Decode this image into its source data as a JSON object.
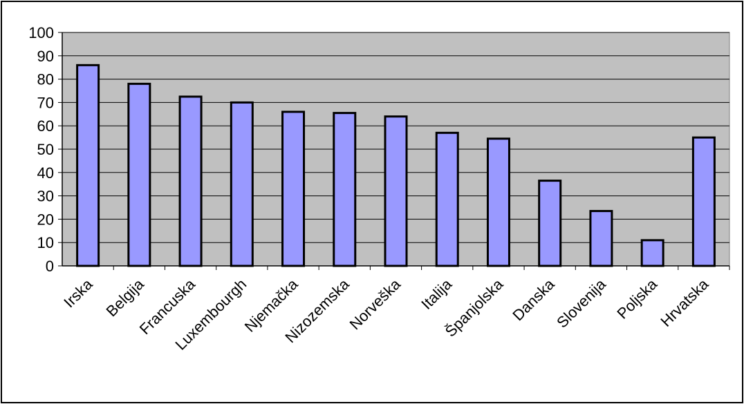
{
  "chart_data": {
    "type": "bar",
    "title": "",
    "xlabel": "",
    "ylabel": "",
    "categories": [
      "Irska",
      "Belgija",
      "Francuska",
      "Luxembourgh",
      "Njemačka",
      "Nizozemska",
      "Norveška",
      "Italija",
      "Španjolska",
      "Danska",
      "Slovenija",
      "Poljska",
      "Hrvatska"
    ],
    "values": [
      86,
      78,
      72.5,
      70,
      66,
      65.5,
      64,
      57,
      54.5,
      36.5,
      23.5,
      11,
      55
    ],
    "ylim": [
      0,
      100
    ],
    "yticks": [
      "0",
      "10",
      "20",
      "30",
      "40",
      "50",
      "60",
      "70",
      "80",
      "90",
      "100"
    ],
    "grid": true,
    "legend": "none",
    "colors": {
      "bar_fill": "#9999FF",
      "bar_stroke": "#000000",
      "plot_background": "#C0C0C0",
      "gridline": "#000000"
    }
  }
}
